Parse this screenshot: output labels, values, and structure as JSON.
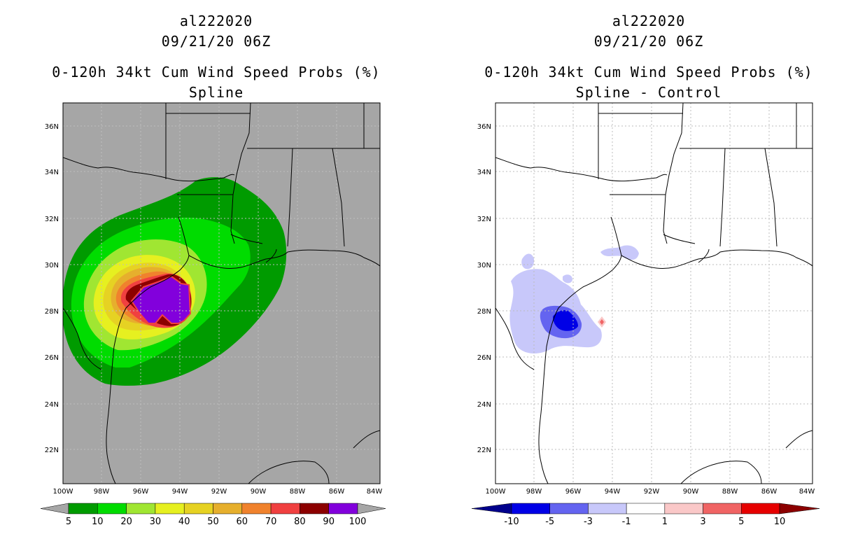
{
  "left_panel": {
    "storm_id": "al222020",
    "datetime": "09/21/20 06Z",
    "title": "0-120h 34kt Cum Wind Speed Probs (%)",
    "subtitle": "Spline",
    "lat_labels": [
      "36N",
      "34N",
      "32N",
      "30N",
      "28N",
      "26N",
      "24N",
      "22N"
    ],
    "lon_labels": [
      "100W",
      "98W",
      "96W",
      "94W",
      "92W",
      "90W",
      "88W",
      "86W",
      "84W"
    ],
    "colorbar": {
      "labels": [
        "5",
        "10",
        "20",
        "30",
        "40",
        "50",
        "60",
        "70",
        "80",
        "90",
        "100"
      ],
      "colors": [
        "#009b00",
        "#00dc00",
        "#a0e632",
        "#e6f020",
        "#e6d223",
        "#e6af2d",
        "#f0822d",
        "#f04040",
        "#8c0000",
        "#8200dc"
      ],
      "under_color": "#a6a6a6",
      "over_color": "#a6a6a6"
    }
  },
  "right_panel": {
    "storm_id": "al222020",
    "datetime": "09/21/20 06Z",
    "title": "0-120h 34kt Cum Wind Speed Probs (%)",
    "subtitle": "Spline - Control",
    "lat_labels": [
      "36N",
      "34N",
      "32N",
      "30N",
      "28N",
      "26N",
      "24N",
      "22N"
    ],
    "lon_labels": [
      "100W",
      "98W",
      "96W",
      "94W",
      "92W",
      "90W",
      "88W",
      "86W",
      "84W"
    ],
    "colorbar": {
      "labels": [
        "-10",
        "-5",
        "-3",
        "-1",
        "1",
        "3",
        "5",
        "10"
      ],
      "colors": [
        "#0000e6",
        "#6464f0",
        "#c8c8fa",
        "#ffffff",
        "#fac8c8",
        "#f06464",
        "#e60000"
      ],
      "under_color": "#00008c",
      "over_color": "#8c0000"
    }
  },
  "colors": {
    "land_background": "#a6a6a6",
    "grid": "#bdbdbd",
    "coastline": "#000000"
  }
}
